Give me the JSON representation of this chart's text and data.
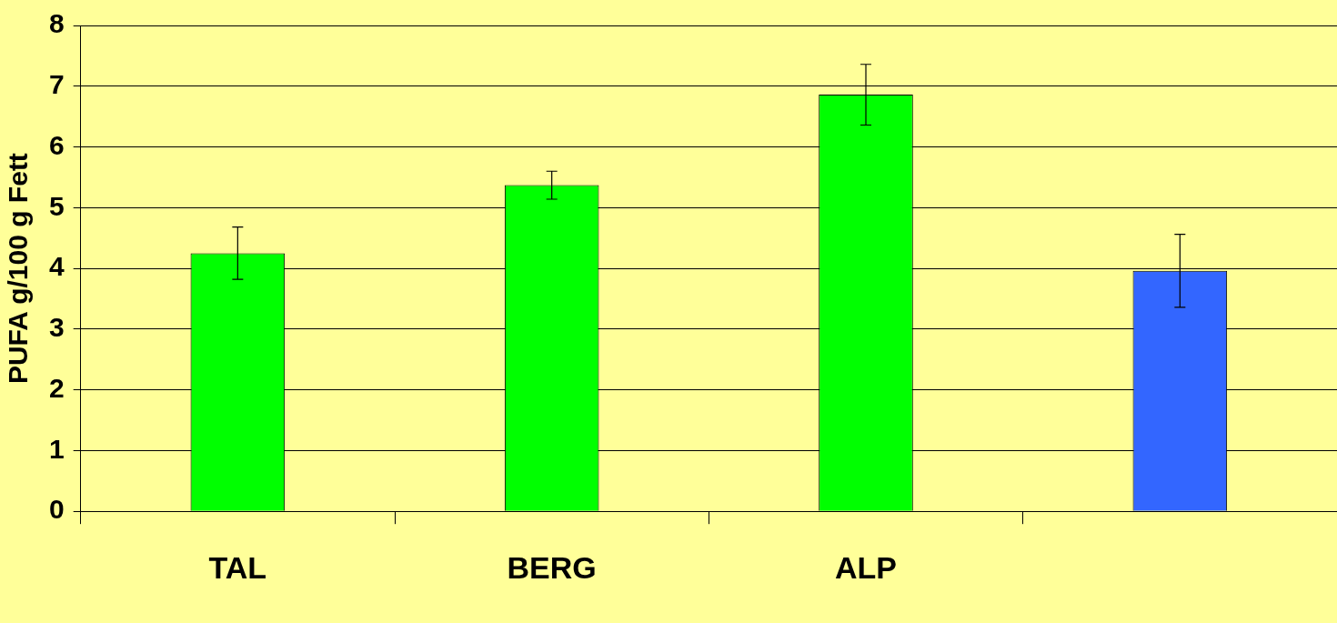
{
  "chart_data": {
    "type": "bar",
    "ylabel": "PUFA g/100 g Fett",
    "categories": [
      "TAL",
      "BERG",
      "ALP",
      null
    ],
    "values": [
      4.25,
      5.37,
      6.86,
      3.96
    ],
    "colors": [
      "#00ff00",
      "#00ff00",
      "#00ff00",
      "#3366ff"
    ],
    "errors": [
      0.43,
      0.23,
      0.5,
      0.6
    ],
    "ylim": [
      0,
      8
    ],
    "yticks": [
      0,
      1,
      2,
      3,
      4,
      5,
      6,
      7,
      8
    ],
    "grid": "y",
    "legend": false
  }
}
